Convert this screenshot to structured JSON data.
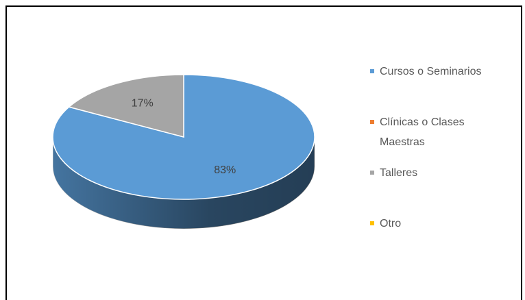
{
  "chart_data": {
    "type": "pie3d",
    "categories": [
      "Cursos o Seminarios",
      "Clínicas o Clases Maestras",
      "Talleres",
      "Otro"
    ],
    "values": [
      83,
      0,
      17,
      0
    ],
    "value_labels": [
      "83%",
      null,
      "17%",
      null
    ],
    "colors": [
      "#5b9bd5",
      "#ed7d31",
      "#a5a5a5",
      "#ffc000"
    ],
    "legend": "right"
  }
}
